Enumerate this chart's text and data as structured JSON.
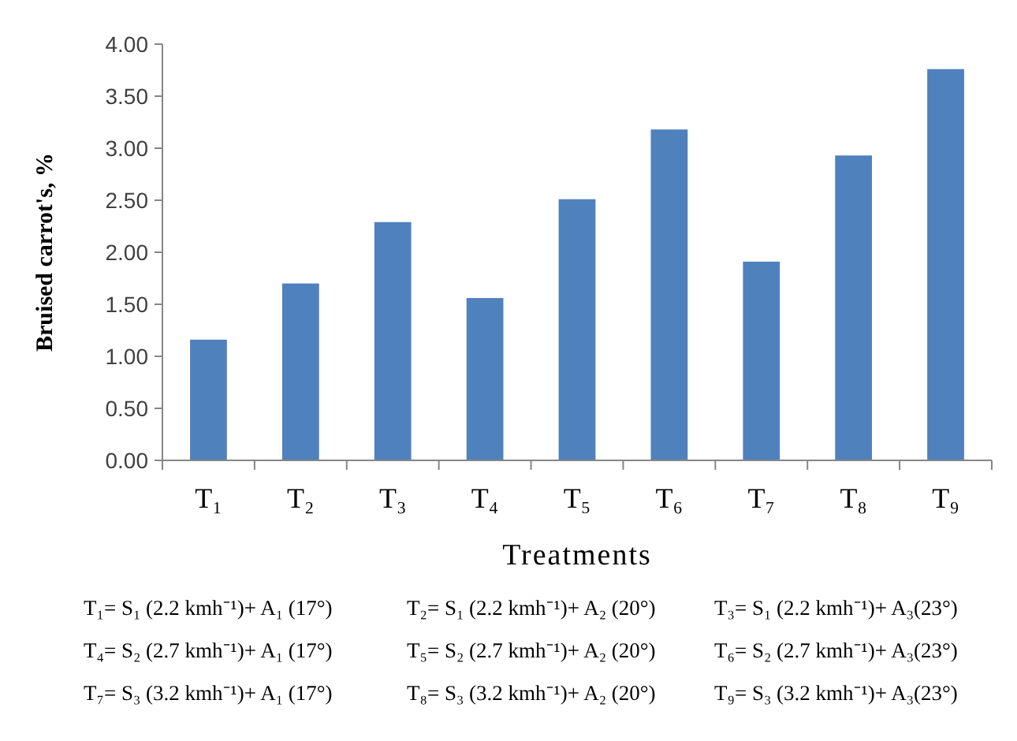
{
  "chart_data": {
    "type": "bar",
    "xlabel": "Treatments",
    "ylabel": "Bruised carrot's,  %",
    "categories": [
      "T₁",
      "T₂",
      "T₃",
      "T₄",
      "T₅",
      "T₆",
      "T₇",
      "T₈",
      "T₉"
    ],
    "values": [
      1.16,
      1.7,
      2.29,
      1.56,
      2.51,
      3.18,
      1.91,
      2.93,
      3.76
    ],
    "color": "#4f81bd",
    "ylim": [
      0,
      4
    ],
    "yticks": [
      {
        "value": 0,
        "label": "0.00"
      },
      {
        "value": 0.5,
        "label": "0.50"
      },
      {
        "value": 1,
        "label": "1.00"
      },
      {
        "value": 1.5,
        "label": "1.50"
      },
      {
        "value": 2,
        "label": "2.00"
      },
      {
        "value": 2.5,
        "label": "2.50"
      },
      {
        "value": 3,
        "label": "3.00"
      },
      {
        "value": 3.5,
        "label": "3.50"
      },
      {
        "value": 4,
        "label": "4.00"
      }
    ],
    "grid": false,
    "annotations": [
      "T₁= S₁ (2.2 kmh⁻¹)+ A₁ (17°)",
      "T₂= S₁ (2.2 kmh⁻¹)+ A₂ (20°)",
      "T₃= S₁ (2.2 kmh⁻¹)+ A₃(23°)",
      "T₄= S₂ (2.7 kmh⁻¹)+ A₁ (17°)",
      "T₅= S₂ (2.7 kmh⁻¹)+ A₂ (20°)",
      "T₆= S₂ (2.7 kmh⁻¹)+ A₃(23°)",
      "T₇= S₃ (3.2 kmh⁻¹)+ A₁ (17°)",
      "T₈= S₃ (3.2 kmh⁻¹)+ A₂ (20°)",
      "T₉= S₃ (3.2 kmh⁻¹)+ A₃(23°)"
    ]
  }
}
